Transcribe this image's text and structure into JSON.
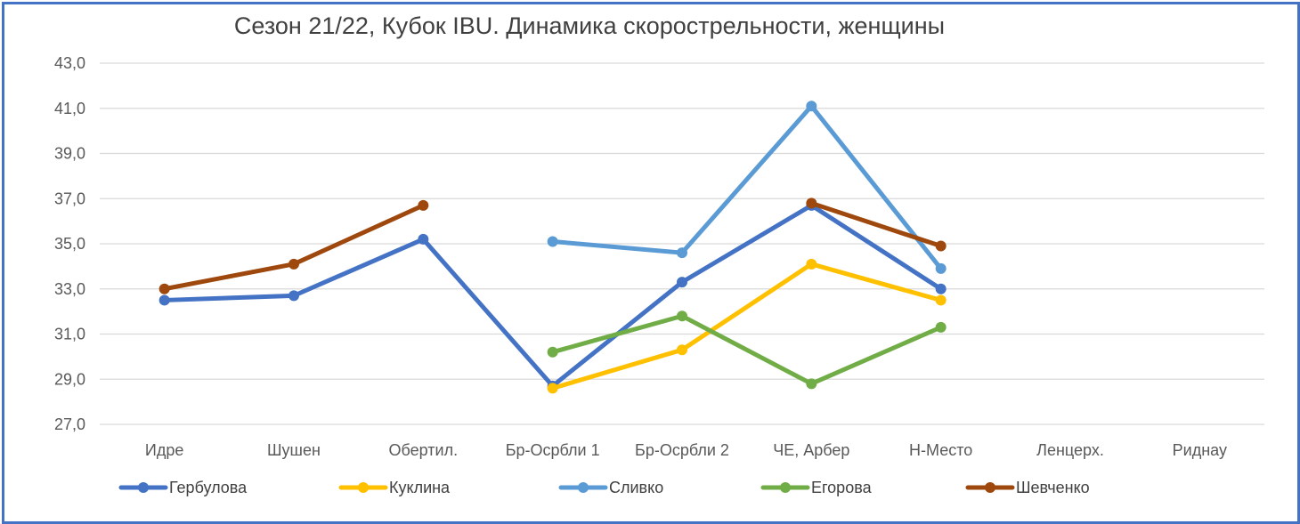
{
  "chart_data": {
    "type": "line",
    "title": "Сезон 21/22, Кубок IBU. Динамика скорострельности,  женщины",
    "xlabel": "",
    "ylabel": "",
    "categories": [
      "Идре",
      "Шушен",
      "Обертил.",
      "Бр-Осрбли 1",
      "Бр-Осрбли 2",
      "ЧЕ, Арбер",
      "Н-Место",
      "Ленцерх.",
      "Риднау"
    ],
    "ylim": [
      27,
      43
    ],
    "yticks": [
      "27,0",
      "29,0",
      "31,0",
      "33,0",
      "35,0",
      "37,0",
      "39,0",
      "41,0",
      "43,0"
    ],
    "grid": true,
    "legend_position": "bottom",
    "series": [
      {
        "name": "Гербулова",
        "color": "#4472c4",
        "values": [
          32.5,
          32.7,
          35.2,
          28.7,
          33.3,
          36.7,
          33.0,
          null,
          null
        ]
      },
      {
        "name": "Куклина",
        "color": "#ffc000",
        "values": [
          null,
          null,
          null,
          28.6,
          30.3,
          34.1,
          32.5,
          null,
          null
        ]
      },
      {
        "name": "Сливко",
        "color": "#5b9bd5",
        "values": [
          null,
          null,
          null,
          35.1,
          34.6,
          41.1,
          33.9,
          null,
          null
        ]
      },
      {
        "name": "Егорова",
        "color": "#70ad47",
        "values": [
          null,
          null,
          null,
          30.2,
          31.8,
          28.8,
          31.3,
          null,
          null
        ]
      },
      {
        "name": "Шевченко",
        "color": "#9e480e",
        "values": [
          33.0,
          34.1,
          36.7,
          null,
          null,
          36.8,
          34.9,
          null,
          null
        ]
      }
    ]
  }
}
